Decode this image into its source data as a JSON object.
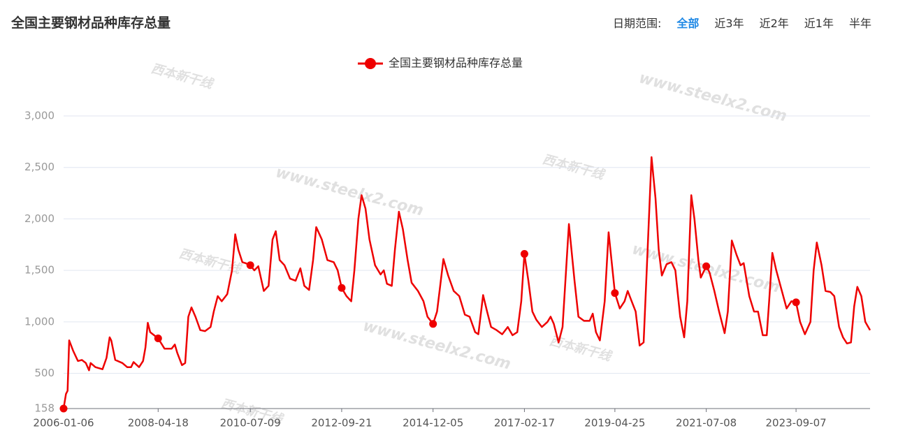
{
  "header": {
    "title": "全国主要钢材品种库存总量",
    "range_label": "日期范围:",
    "range_options": [
      "全部",
      "近3年",
      "近2年",
      "近1年",
      "半年"
    ],
    "active_option": 0
  },
  "watermark": {
    "url": "www.steelx2.com",
    "brand": "西本新干线"
  },
  "chart_data": {
    "type": "line",
    "x": [
      "2006-01-06",
      "2006-01-27",
      "2006-02-10",
      "2006-02-24",
      "2006-03-31",
      "2006-05-12",
      "2006-06-16",
      "2006-07-21",
      "2006-08-18",
      "2006-09-01",
      "2006-10-13",
      "2006-12-15",
      "2007-01-19",
      "2007-02-16",
      "2007-03-02",
      "2007-04-06",
      "2007-06-08",
      "2007-07-20",
      "2007-08-24",
      "2007-09-14",
      "2007-11-02",
      "2007-12-07",
      "2007-12-28",
      "2008-01-18",
      "2008-02-08",
      "2008-04-18",
      "2008-06-13",
      "2008-08-15",
      "2008-09-12",
      "2008-10-03",
      "2008-11-14",
      "2008-12-12",
      "2009-01-09",
      "2009-02-06",
      "2009-03-13",
      "2009-04-24",
      "2009-06-05",
      "2009-07-24",
      "2009-08-21",
      "2009-09-25",
      "2009-10-30",
      "2009-12-18",
      "2010-01-29",
      "2010-02-26",
      "2010-03-26",
      "2010-04-30",
      "2010-05-28",
      "2010-07-09",
      "2010-08-13",
      "2010-09-17",
      "2010-11-05",
      "2010-12-17",
      "2011-01-21",
      "2011-02-18",
      "2011-03-25",
      "2011-05-06",
      "2011-06-24",
      "2011-08-12",
      "2011-09-23",
      "2011-10-28",
      "2011-12-09",
      "2012-01-13",
      "2012-02-10",
      "2012-03-30",
      "2012-05-18",
      "2012-07-13",
      "2012-08-17",
      "2012-09-21",
      "2012-11-02",
      "2012-12-14",
      "2013-01-11",
      "2013-02-15",
      "2013-03-15",
      "2013-04-19",
      "2013-05-24",
      "2013-07-12",
      "2013-08-30",
      "2013-09-27",
      "2013-10-25",
      "2013-12-06",
      "2014-01-03",
      "2014-02-07",
      "2014-03-14",
      "2014-04-25",
      "2014-05-30",
      "2014-07-25",
      "2014-09-12",
      "2014-10-17",
      "2014-12-05",
      "2015-01-09",
      "2015-02-06",
      "2015-03-06",
      "2015-04-17",
      "2015-06-05",
      "2015-07-24",
      "2015-09-11",
      "2015-10-23",
      "2015-12-11",
      "2016-01-08",
      "2016-02-19",
      "2016-03-25",
      "2016-04-29",
      "2016-06-17",
      "2016-08-05",
      "2016-09-23",
      "2016-11-04",
      "2016-12-16",
      "2017-01-20",
      "2017-02-17",
      "2017-03-24",
      "2017-04-28",
      "2017-06-02",
      "2017-07-21",
      "2017-09-08",
      "2017-10-06",
      "2017-11-03",
      "2017-12-15",
      "2018-01-19",
      "2018-03-16",
      "2018-05-04",
      "2018-06-08",
      "2018-07-27",
      "2018-09-14",
      "2018-10-12",
      "2018-11-09",
      "2018-12-14",
      "2019-01-25",
      "2019-03-01",
      "2019-04-25",
      "2019-06-07",
      "2019-07-19",
      "2019-08-16",
      "2019-09-20",
      "2019-10-25",
      "2019-11-29",
      "2020-01-03",
      "2020-02-07",
      "2020-03-13",
      "2020-04-17",
      "2020-05-15",
      "2020-06-12",
      "2020-07-24",
      "2020-09-04",
      "2020-10-09",
      "2020-11-20",
      "2020-12-25",
      "2021-01-22",
      "2021-02-26",
      "2021-03-26",
      "2021-04-30",
      "2021-05-21",
      "2021-07-08",
      "2021-08-06",
      "2021-09-17",
      "2021-10-29",
      "2021-12-17",
      "2022-01-14",
      "2022-02-18",
      "2022-04-01",
      "2022-05-06",
      "2022-06-03",
      "2022-07-22",
      "2022-09-02",
      "2022-10-07",
      "2022-11-18",
      "2022-12-23",
      "2023-01-13",
      "2023-02-10",
      "2023-03-17",
      "2023-05-05",
      "2023-06-16",
      "2023-07-28",
      "2023-09-07",
      "2023-10-13",
      "2023-11-24",
      "2024-01-12",
      "2024-02-09",
      "2024-03-08",
      "2024-04-19",
      "2024-05-24",
      "2024-07-05",
      "2024-08-09",
      "2024-09-20",
      "2024-10-25",
      "2024-11-29",
      "2025-01-03",
      "2025-01-31",
      "2025-02-28",
      "2025-04-04",
      "2025-05-09",
      "2025-06-20"
    ],
    "series": [
      {
        "name": "全国主要钢材品种库存总量",
        "color": "#ee0000",
        "values": [
          158,
          300,
          330,
          820,
          720,
          620,
          630,
          600,
          530,
          600,
          560,
          540,
          650,
          850,
          820,
          630,
          600,
          560,
          560,
          610,
          560,
          620,
          750,
          990,
          900,
          840,
          740,
          740,
          780,
          700,
          580,
          600,
          1050,
          1140,
          1050,
          920,
          910,
          950,
          1100,
          1250,
          1200,
          1270,
          1500,
          1850,
          1700,
          1580,
          1570,
          1550,
          1500,
          1540,
          1300,
          1350,
          1800,
          1880,
          1600,
          1550,
          1420,
          1400,
          1520,
          1350,
          1310,
          1600,
          1920,
          1800,
          1600,
          1580,
          1500,
          1330,
          1250,
          1200,
          1500,
          2000,
          2230,
          2100,
          1800,
          1550,
          1460,
          1500,
          1370,
          1350,
          1700,
          2070,
          1900,
          1600,
          1380,
          1300,
          1200,
          1050,
          980,
          1100,
          1350,
          1610,
          1450,
          1300,
          1250,
          1070,
          1050,
          900,
          880,
          1260,
          1100,
          950,
          920,
          880,
          950,
          870,
          900,
          1200,
          1660,
          1400,
          1100,
          1020,
          950,
          1000,
          1050,
          980,
          800,
          950,
          1950,
          1400,
          1050,
          1010,
          1010,
          1080,
          900,
          820,
          1200,
          1870,
          1280,
          1130,
          1200,
          1300,
          1200,
          1100,
          770,
          800,
          1700,
          2600,
          2200,
          1700,
          1450,
          1560,
          1580,
          1500,
          1050,
          850,
          1200,
          2230,
          2000,
          1600,
          1430,
          1540,
          1480,
          1300,
          1100,
          890,
          1100,
          1790,
          1650,
          1550,
          1570,
          1250,
          1100,
          1100,
          870,
          870,
          1200,
          1670,
          1500,
          1300,
          1130,
          1200,
          1190,
          1000,
          880,
          1000,
          1500,
          1770,
          1550,
          1300,
          1290,
          1250,
          950,
          850,
          790,
          800,
          1150,
          1340,
          1250,
          1000,
          920
        ]
      }
    ],
    "xticks": [
      "2006-01-06",
      "2008-04-18",
      "2010-07-09",
      "2012-09-21",
      "2014-12-05",
      "2017-02-17",
      "2019-04-25",
      "2021-07-08",
      "2023-09-07"
    ],
    "ylim": [
      158,
      3000
    ],
    "yticks": [
      158,
      500,
      {
        "value": 1000,
        "label": "1,000"
      },
      {
        "value": 1500,
        "label": "1,500"
      },
      {
        "value": 2000,
        "label": "2,000"
      },
      {
        "value": 2500,
        "label": "2,500"
      },
      {
        "value": 3000,
        "label": "3,000"
      }
    ],
    "grid": true
  }
}
